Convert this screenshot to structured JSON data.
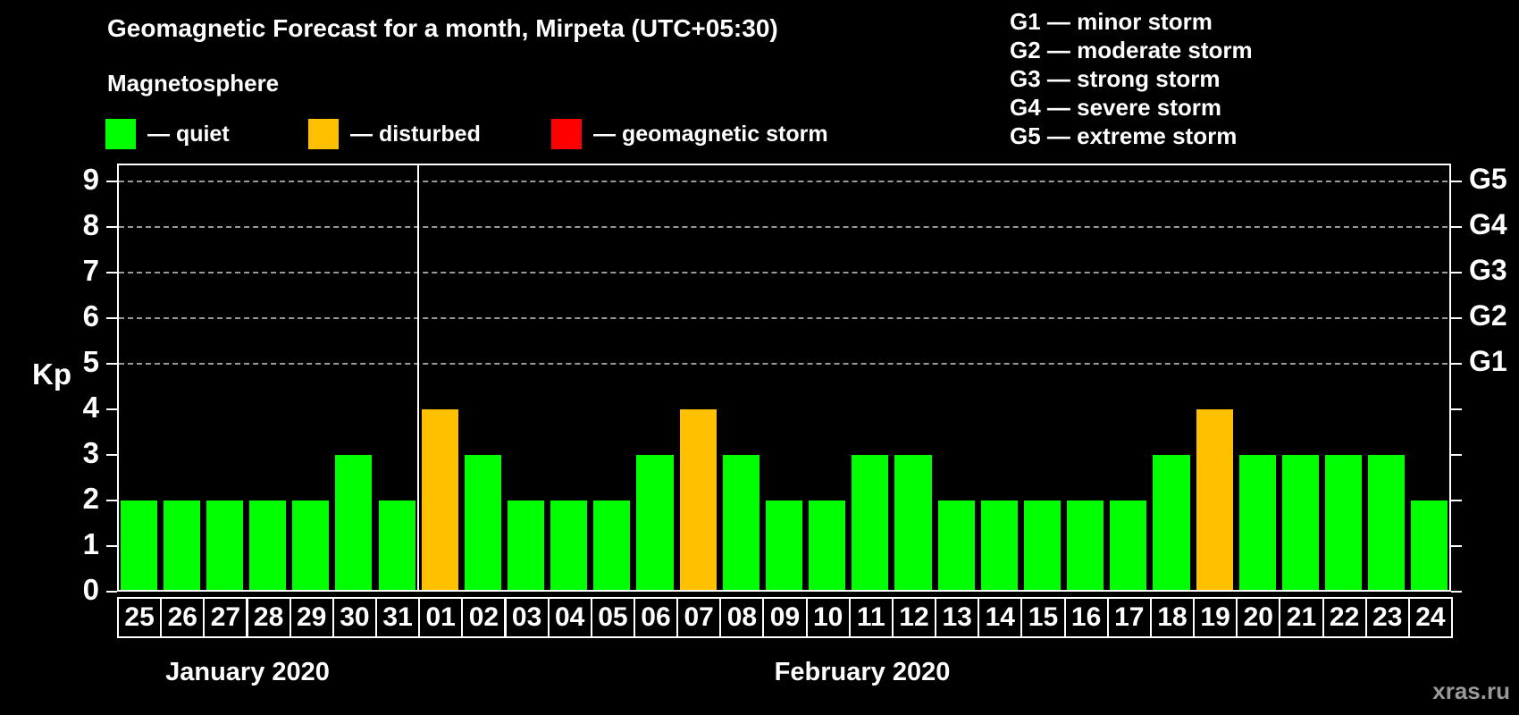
{
  "title": "Geomagnetic Forecast for a month, Mirpeta (UTC+05:30)",
  "subtitle": "Magnetosphere",
  "legend": {
    "items": [
      {
        "id": "quiet",
        "label": "— quiet",
        "color": "#00ff00"
      },
      {
        "id": "disturbed",
        "label": "— disturbed",
        "color": "#ffc000"
      },
      {
        "id": "storm",
        "label": "— geomagnetic storm",
        "color": "#ff0000"
      }
    ]
  },
  "g_legend": [
    "G1 — minor storm",
    "G2 — moderate storm",
    "G3 — strong storm",
    "G4 — severe storm",
    "G5 — extreme storm"
  ],
  "watermark": "xras.ru",
  "chart_data": {
    "type": "bar",
    "ylabel": "Kp",
    "ylim": [
      0,
      9.4
    ],
    "yticks": [
      0,
      1,
      2,
      3,
      4,
      5,
      6,
      7,
      8,
      9
    ],
    "gridlines_kp": [
      5,
      6,
      7,
      8,
      9
    ],
    "right_axis_labels": [
      {
        "label": "G1",
        "kp": 5
      },
      {
        "label": "G2",
        "kp": 6
      },
      {
        "label": "G3",
        "kp": 7
      },
      {
        "label": "G4",
        "kp": 8
      },
      {
        "label": "G5",
        "kp": 9
      }
    ],
    "months": [
      {
        "label": "January 2020",
        "days": 7
      },
      {
        "label": "February 2020",
        "days": 24
      }
    ],
    "categories": [
      "25",
      "26",
      "27",
      "28",
      "29",
      "30",
      "31",
      "01",
      "02",
      "03",
      "04",
      "05",
      "06",
      "07",
      "08",
      "09",
      "10",
      "11",
      "12",
      "13",
      "14",
      "15",
      "16",
      "17",
      "18",
      "19",
      "20",
      "21",
      "22",
      "23",
      "24"
    ],
    "values": [
      2,
      2,
      2,
      2,
      2,
      3,
      2,
      4,
      3,
      2,
      2,
      2,
      3,
      4,
      3,
      2,
      2,
      3,
      3,
      2,
      2,
      2,
      2,
      2,
      3,
      4,
      3,
      3,
      3,
      3,
      2
    ],
    "statuses": [
      "quiet",
      "quiet",
      "quiet",
      "quiet",
      "quiet",
      "quiet",
      "quiet",
      "disturbed",
      "quiet",
      "quiet",
      "quiet",
      "quiet",
      "quiet",
      "disturbed",
      "quiet",
      "quiet",
      "quiet",
      "quiet",
      "quiet",
      "quiet",
      "quiet",
      "quiet",
      "quiet",
      "quiet",
      "quiet",
      "disturbed",
      "quiet",
      "quiet",
      "quiet",
      "quiet",
      "quiet"
    ],
    "colors": {
      "quiet": "#00ff00",
      "disturbed": "#ffc000",
      "storm": "#ff0000"
    },
    "grid_color": "#999999",
    "axis_color": "#ffffff"
  }
}
